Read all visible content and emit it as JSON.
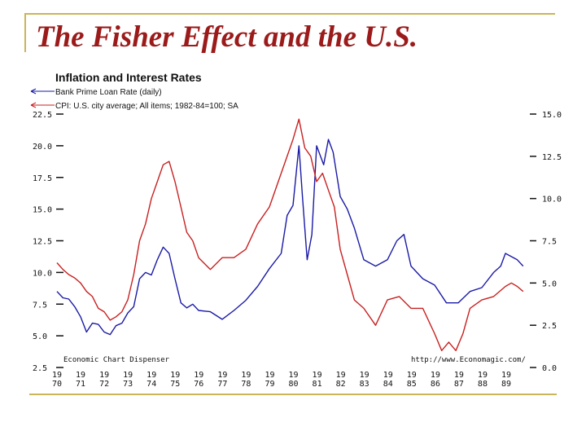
{
  "slide": {
    "title": "The Fisher Effect and the U.S."
  },
  "chart_data": {
    "type": "line",
    "title": "Inflation and Interest Rates",
    "series": [
      {
        "name": "Bank Prime Loan Rate (daily)",
        "axis": "left",
        "color": "#1a1aa6",
        "x": [
          1970.0,
          1970.25,
          1970.5,
          1970.75,
          1971.0,
          1971.25,
          1971.5,
          1971.75,
          1972.0,
          1972.25,
          1972.5,
          1972.75,
          1973.0,
          1973.25,
          1973.5,
          1973.75,
          1974.0,
          1974.25,
          1974.5,
          1974.75,
          1975.0,
          1975.25,
          1975.5,
          1975.75,
          1976.0,
          1976.5,
          1977.0,
          1977.5,
          1978.0,
          1978.5,
          1979.0,
          1979.5,
          1979.75,
          1980.0,
          1980.25,
          1980.4,
          1980.6,
          1980.8,
          1981.0,
          1981.3,
          1981.5,
          1981.7,
          1982.0,
          1982.3,
          1982.6,
          1983.0,
          1983.5,
          1984.0,
          1984.4,
          1984.7,
          1985.0,
          1985.5,
          1986.0,
          1986.5,
          1987.0,
          1987.5,
          1988.0,
          1988.5,
          1988.8,
          1989.0,
          1989.5,
          1989.75
        ],
        "values": [
          8.5,
          8.0,
          7.9,
          7.3,
          6.5,
          5.3,
          6.0,
          5.9,
          5.3,
          5.1,
          5.8,
          6.0,
          6.8,
          7.3,
          9.5,
          10.0,
          9.8,
          11.0,
          12.0,
          11.5,
          9.5,
          7.6,
          7.2,
          7.5,
          7.0,
          6.9,
          6.3,
          7.0,
          7.8,
          8.9,
          10.3,
          11.5,
          14.5,
          15.3,
          20.0,
          16.0,
          11.0,
          13.0,
          20.0,
          18.5,
          20.5,
          19.5,
          16.0,
          15.0,
          13.5,
          11.0,
          10.5,
          11.0,
          12.5,
          13.0,
          10.5,
          9.5,
          9.0,
          7.6,
          7.6,
          8.5,
          8.8,
          10.0,
          10.5,
          11.5,
          11.0,
          10.5
        ]
      },
      {
        "name": "CPI: U.S. city average; All items; 1982-84=100; SA",
        "axis": "right",
        "color": "#c82020",
        "x": [
          1970.0,
          1970.25,
          1970.5,
          1970.75,
          1971.0,
          1971.25,
          1971.5,
          1971.75,
          1972.0,
          1972.25,
          1972.5,
          1972.75,
          1973.0,
          1973.25,
          1973.5,
          1973.75,
          1974.0,
          1974.25,
          1974.5,
          1974.75,
          1975.0,
          1975.25,
          1975.5,
          1975.75,
          1976.0,
          1976.5,
          1977.0,
          1977.5,
          1978.0,
          1978.5,
          1979.0,
          1979.5,
          1980.0,
          1980.25,
          1980.5,
          1980.75,
          1981.0,
          1981.25,
          1981.5,
          1981.75,
          1982.0,
          1982.3,
          1982.6,
          1983.0,
          1983.5,
          1984.0,
          1984.5,
          1985.0,
          1985.5,
          1986.0,
          1986.3,
          1986.6,
          1986.9,
          1987.2,
          1987.5,
          1988.0,
          1988.5,
          1989.0,
          1989.25,
          1989.5,
          1989.75
        ],
        "values": [
          6.2,
          5.8,
          5.5,
          5.3,
          5.0,
          4.5,
          4.2,
          3.5,
          3.3,
          2.8,
          3.0,
          3.3,
          4.0,
          5.5,
          7.5,
          8.5,
          10.0,
          11.0,
          12.0,
          12.2,
          11.0,
          9.5,
          8.0,
          7.5,
          6.5,
          5.8,
          6.5,
          6.5,
          7.0,
          8.5,
          9.5,
          11.5,
          13.5,
          14.7,
          13.0,
          12.5,
          11.0,
          11.5,
          10.5,
          9.5,
          7.0,
          5.5,
          4.0,
          3.5,
          2.5,
          4.0,
          4.2,
          3.5,
          3.5,
          2.0,
          1.0,
          1.5,
          1.0,
          2.0,
          3.5,
          4.0,
          4.2,
          4.8,
          5.0,
          4.8,
          4.5
        ]
      }
    ],
    "left_axis": {
      "ylim": [
        2.5,
        22.5
      ],
      "ticks": [
        "22.5",
        "20.0",
        "17.5",
        "15.0",
        "12.5",
        "10.0",
        "7.5",
        "5.0",
        "2.5"
      ]
    },
    "right_axis": {
      "ylim": [
        0.0,
        15.0
      ],
      "ticks": [
        "15.0",
        "12.5",
        "10.0",
        "7.5",
        "5.0",
        "2.5",
        "0.0"
      ]
    },
    "xlim": [
      1970,
      1990
    ],
    "x_ticks": [
      {
        "top": "19",
        "bottom": "70"
      },
      {
        "top": "19",
        "bottom": "71"
      },
      {
        "top": "19",
        "bottom": "72"
      },
      {
        "top": "19",
        "bottom": "73"
      },
      {
        "top": "19",
        "bottom": "74"
      },
      {
        "top": "19",
        "bottom": "75"
      },
      {
        "top": "19",
        "bottom": "76"
      },
      {
        "top": "19",
        "bottom": "77"
      },
      {
        "top": "19",
        "bottom": "78"
      },
      {
        "top": "19",
        "bottom": "79"
      },
      {
        "top": "19",
        "bottom": "80"
      },
      {
        "top": "19",
        "bottom": "81"
      },
      {
        "top": "19",
        "bottom": "82"
      },
      {
        "top": "19",
        "bottom": "83"
      },
      {
        "top": "19",
        "bottom": "84"
      },
      {
        "top": "19",
        "bottom": "85"
      },
      {
        "top": "19",
        "bottom": "86"
      },
      {
        "top": "19",
        "bottom": "87"
      },
      {
        "top": "19",
        "bottom": "88"
      },
      {
        "top": "19",
        "bottom": "89"
      }
    ],
    "annotations": {
      "source": "Economic Chart Dispenser",
      "url": "http://www.Economagic.com/"
    }
  }
}
